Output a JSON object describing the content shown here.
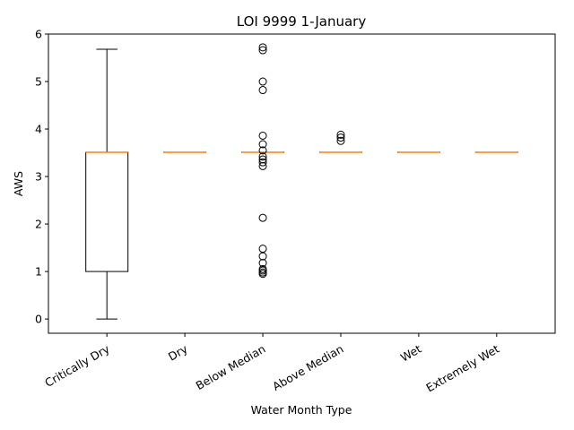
{
  "chart_data": {
    "type": "box",
    "title": "LOI 9999 1-January",
    "xlabel": "Water Month Type",
    "ylabel": "AWS",
    "ylim": [
      -0.3,
      6.0
    ],
    "yticks": [
      0,
      1,
      2,
      3,
      4,
      5,
      6
    ],
    "grid": false,
    "categories": [
      "Critically Dry",
      "Dry",
      "Below Median",
      "Above Median",
      "Wet",
      "Extremely Wet"
    ],
    "boxes": [
      {
        "category": "Critically Dry",
        "whisker_low": 0.0,
        "q1": 1.0,
        "median": 3.51,
        "q3": 3.51,
        "whisker_high": 5.68,
        "outliers": []
      },
      {
        "category": "Dry",
        "whisker_low": 3.51,
        "q1": 3.51,
        "median": 3.51,
        "q3": 3.51,
        "whisker_high": 3.51,
        "outliers": []
      },
      {
        "category": "Below Median",
        "whisker_low": 3.51,
        "q1": 3.51,
        "median": 3.51,
        "q3": 3.51,
        "whisker_high": 3.51,
        "outliers": [
          5.72,
          5.66,
          5.0,
          4.82,
          3.86,
          3.68,
          3.55,
          3.42,
          3.36,
          3.3,
          3.22,
          2.13,
          1.48,
          1.32,
          1.18,
          1.05,
          1.02,
          0.98,
          0.95
        ]
      },
      {
        "category": "Above Median",
        "whisker_low": 3.51,
        "q1": 3.51,
        "median": 3.51,
        "q3": 3.51,
        "whisker_high": 3.51,
        "outliers": [
          3.88,
          3.82,
          3.75
        ]
      },
      {
        "category": "Wet",
        "whisker_low": 3.51,
        "q1": 3.51,
        "median": 3.51,
        "q3": 3.51,
        "whisker_high": 3.51,
        "outliers": []
      },
      {
        "category": "Extremely Wet",
        "whisker_low": 3.51,
        "q1": 3.51,
        "median": 3.51,
        "q3": 3.51,
        "whisker_high": 3.51,
        "outliers": []
      }
    ],
    "colors": {
      "box": "#000000",
      "median": "#ff7f0e",
      "outlier": "#000000"
    }
  }
}
